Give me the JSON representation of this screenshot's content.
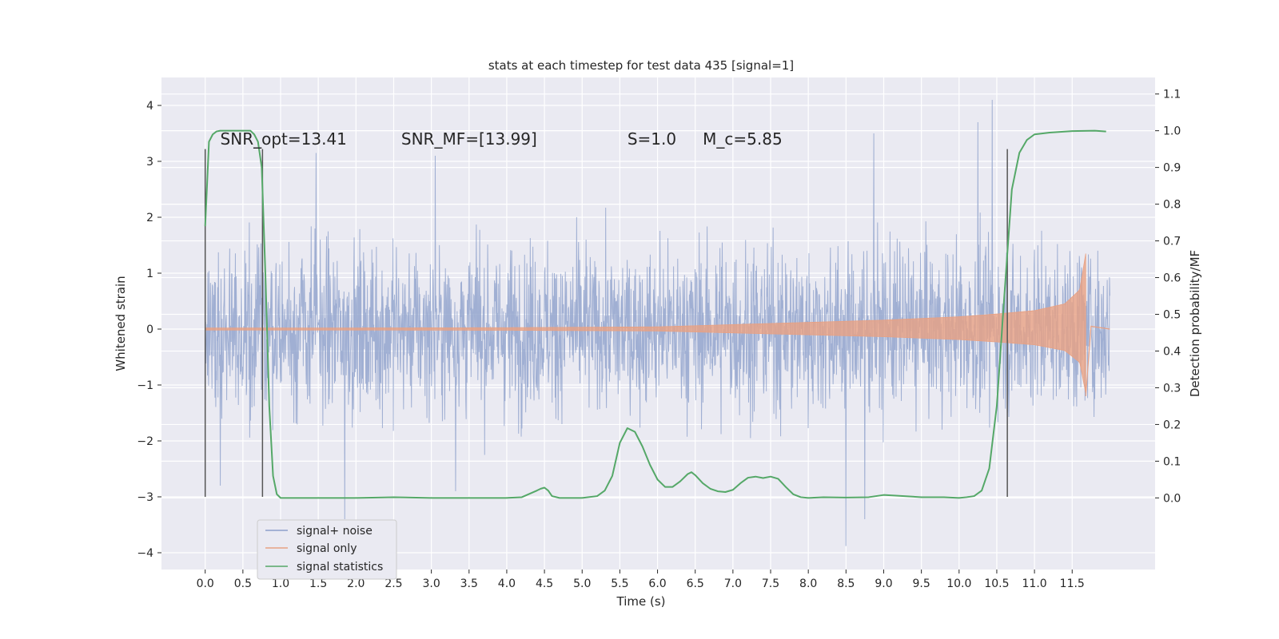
{
  "chart_data": {
    "type": "line",
    "title": "stats at each timestep for test data 435 [signal=1]",
    "xlabel": "Time (s)",
    "ylabel_left": "Whitened strain",
    "ylabel_right": "Detection probability/MF",
    "xlim": [
      -0.58,
      12.6
    ],
    "ylim_left": [
      -4.3,
      4.5
    ],
    "ylim_right": [
      -0.195,
      1.145
    ],
    "x_ticks": [
      0.0,
      0.5,
      1.0,
      1.5,
      2.0,
      2.5,
      3.0,
      3.5,
      4.0,
      4.5,
      5.0,
      5.5,
      6.0,
      6.5,
      7.0,
      7.5,
      8.0,
      8.5,
      9.0,
      9.5,
      10.0,
      10.5,
      11.0,
      11.5
    ],
    "x_tick_labels": [
      "0.0",
      "0.5",
      "1.0",
      "1.5",
      "2.0",
      "2.5",
      "3.0",
      "3.5",
      "4.0",
      "4.5",
      "5.0",
      "5.5",
      "6.0",
      "6.5",
      "7.0",
      "7.5",
      "8.0",
      "8.5",
      "9.0",
      "9.5",
      "10.0",
      "10.5",
      "11.0",
      "11.5"
    ],
    "y_left_ticks": [
      -4,
      -3,
      -2,
      -1,
      0,
      1,
      2,
      3,
      4
    ],
    "y_left_tick_labels": [
      "−4",
      "−3",
      "−2",
      "−1",
      "0",
      "1",
      "2",
      "3",
      "4"
    ],
    "y_right_ticks": [
      0.0,
      0.1,
      0.2,
      0.3,
      0.4,
      0.5,
      0.6,
      0.7,
      0.8,
      0.9,
      1.0,
      1.1
    ],
    "y_right_tick_labels": [
      "0.0",
      "0.1",
      "0.2",
      "0.3",
      "0.4",
      "0.5",
      "0.6",
      "0.7",
      "0.8",
      "0.9",
      "1.0",
      "1.1"
    ],
    "grid": true,
    "legend_position": "lower-left",
    "annotations": [
      {
        "text": "SNR_opt=13.41",
        "x": 0.2,
        "y": 3.3
      },
      {
        "text": "SNR_MF=[13.99]",
        "x": 2.6,
        "y": 3.3
      },
      {
        "text": "S=1.0",
        "x": 5.6,
        "y": 3.3
      },
      {
        "text": "M_c=5.85",
        "x": 6.6,
        "y": 3.3
      }
    ],
    "vertical_markers": [
      {
        "x": 0.0,
        "y_from": -3.0,
        "y_to": 3.22
      },
      {
        "x": 0.76,
        "y_from": -3.0,
        "y_to": 3.22
      },
      {
        "x": 10.64,
        "y_from": -3.0,
        "y_to": 3.22
      }
    ],
    "series": [
      {
        "name": "signal+ noise",
        "color": "#8da0cb",
        "axis": "left",
        "x_range": [
          0.0,
          12.0
        ],
        "y_range": [
          -3.88,
          4.1
        ],
        "peaks": [
          {
            "x": 0.2,
            "y": -2.8
          },
          {
            "x": 1.47,
            "y": 3.15
          },
          {
            "x": 1.85,
            "y": -3.4
          },
          {
            "x": 3.05,
            "y": 3.1
          },
          {
            "x": 3.32,
            "y": -2.9
          },
          {
            "x": 8.5,
            "y": -3.88
          },
          {
            "x": 8.75,
            "y": -3.4
          },
          {
            "x": 8.87,
            "y": 3.5
          },
          {
            "x": 10.25,
            "y": 3.7
          },
          {
            "x": 10.44,
            "y": 4.1
          }
        ]
      },
      {
        "name": "signal only",
        "color": "#e8a183",
        "axis": "left",
        "x_range": [
          0.0,
          12.0
        ],
        "envelope": [
          [
            0.0,
            0.02
          ],
          [
            2.0,
            0.02
          ],
          [
            4.0,
            0.025
          ],
          [
            6.0,
            0.04
          ],
          [
            7.0,
            0.08
          ],
          [
            8.0,
            0.12
          ],
          [
            9.0,
            0.16
          ],
          [
            10.0,
            0.22
          ],
          [
            10.5,
            0.27
          ],
          [
            11.0,
            0.33
          ],
          [
            11.4,
            0.45
          ],
          [
            11.6,
            0.7
          ],
          [
            11.68,
            1.35
          ]
        ],
        "ringdown_end": 11.75
      },
      {
        "name": "signal statistics",
        "color": "#55a868",
        "axis": "right",
        "x": [
          0.0,
          0.05,
          0.1,
          0.15,
          0.2,
          0.3,
          0.4,
          0.5,
          0.6,
          0.65,
          0.7,
          0.75,
          0.8,
          0.85,
          0.9,
          0.95,
          1.0,
          1.1,
          1.5,
          2.0,
          2.5,
          3.0,
          3.5,
          4.0,
          4.2,
          4.4,
          4.45,
          4.5,
          4.55,
          4.6,
          4.7,
          4.8,
          5.0,
          5.2,
          5.3,
          5.4,
          5.5,
          5.6,
          5.7,
          5.8,
          5.9,
          6.0,
          6.1,
          6.2,
          6.3,
          6.4,
          6.45,
          6.5,
          6.6,
          6.7,
          6.8,
          6.9,
          7.0,
          7.1,
          7.2,
          7.3,
          7.4,
          7.5,
          7.6,
          7.7,
          7.8,
          7.9,
          8.0,
          8.2,
          8.5,
          8.8,
          9.0,
          9.5,
          9.8,
          10.0,
          10.1,
          10.2,
          10.3,
          10.4,
          10.5,
          10.6,
          10.7,
          10.8,
          10.9,
          11.0,
          11.2,
          11.5,
          11.8,
          11.95
        ],
        "y": [
          0.74,
          0.97,
          0.99,
          0.998,
          1.0,
          1.0,
          1.0,
          1.0,
          1.0,
          0.99,
          0.97,
          0.9,
          0.6,
          0.25,
          0.06,
          0.01,
          0.0,
          0.0,
          0.0,
          0.0,
          0.002,
          0.0,
          0.0,
          0.0,
          0.002,
          0.02,
          0.025,
          0.028,
          0.02,
          0.005,
          0.0,
          0.0,
          0.0,
          0.005,
          0.02,
          0.06,
          0.15,
          0.19,
          0.18,
          0.14,
          0.09,
          0.05,
          0.03,
          0.03,
          0.045,
          0.065,
          0.07,
          0.062,
          0.04,
          0.025,
          0.018,
          0.016,
          0.022,
          0.04,
          0.055,
          0.058,
          0.054,
          0.058,
          0.052,
          0.03,
          0.01,
          0.002,
          0.0,
          0.002,
          0.001,
          0.002,
          0.008,
          0.002,
          0.002,
          0.0,
          0.002,
          0.005,
          0.02,
          0.08,
          0.25,
          0.55,
          0.84,
          0.94,
          0.975,
          0.99,
          0.995,
          0.999,
          1.0,
          0.998
        ]
      }
    ]
  }
}
